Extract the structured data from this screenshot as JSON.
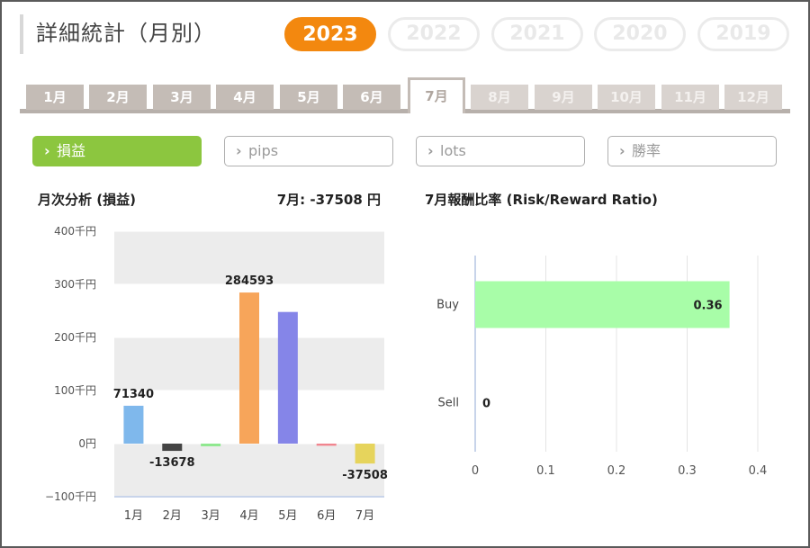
{
  "header": {
    "title": "詳細統計（月別）",
    "years": [
      "2023",
      "2022",
      "2021",
      "2020",
      "2019"
    ],
    "active_year": "2023"
  },
  "months": [
    "1月",
    "2月",
    "3月",
    "4月",
    "5月",
    "6月",
    "7月",
    "8月",
    "9月",
    "10月",
    "11月",
    "12月"
  ],
  "active_month": "7月",
  "metrics": [
    {
      "label": "損益",
      "active": true
    },
    {
      "label": "pips",
      "active": false
    },
    {
      "label": "lots",
      "active": false
    },
    {
      "label": "勝率",
      "active": false
    }
  ],
  "monthly": {
    "title": "月次分析 (損益)",
    "summary_label": "7月:",
    "summary_value": "-37508 円"
  },
  "ratio": {
    "title": "7月報酬比率 (Risk/Reward Ratio)"
  },
  "chart_data": [
    {
      "type": "bar",
      "title": "月次分析 (損益)",
      "categories": [
        "1月",
        "2月",
        "3月",
        "4月",
        "5月",
        "6月",
        "7月"
      ],
      "values": [
        71340,
        -13678,
        -5000,
        284593,
        248000,
        -4000,
        -37508
      ],
      "data_labels": [
        "71340",
        "-13678",
        "",
        "284593",
        "",
        "",
        "-37508"
      ],
      "colors": [
        "#7fb8ec",
        "#444444",
        "#8fe88f",
        "#f7a55a",
        "#8585e8",
        "#f1858f",
        "#e6d45c"
      ],
      "ylim": [
        -100000,
        400000
      ],
      "yticks": [
        400000,
        300000,
        200000,
        100000,
        0,
        -100000
      ],
      "ytick_labels": [
        "400千円",
        "300千円",
        "200千円",
        "100千円",
        "0円",
        "−100千円"
      ],
      "grid": "alternating bands"
    },
    {
      "type": "bar",
      "orientation": "horizontal",
      "title": "7月報酬比率 (Risk/Reward Ratio)",
      "categories": [
        "Buy",
        "Sell"
      ],
      "values": [
        0.36,
        0
      ],
      "data_labels": [
        "0.36",
        "0"
      ],
      "colors": [
        "#a8fda8",
        "#a8fda8"
      ],
      "xlim": [
        0,
        0.4
      ],
      "xticks": [
        0,
        0.1,
        0.2,
        0.3,
        0.4
      ],
      "xtick_labels": [
        "0",
        "0.1",
        "0.2",
        "0.3",
        "0.4"
      ],
      "grid": "vertical lines"
    }
  ]
}
